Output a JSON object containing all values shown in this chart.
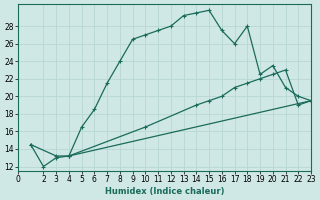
{
  "xlabel": "Humidex (Indice chaleur)",
  "background_color": "#cfe8e5",
  "grid_color": "#b8d8d4",
  "line_color": "#1a6b5a",
  "xlim": [
    0,
    23
  ],
  "ylim": [
    11.5,
    30.5
  ],
  "xticks": [
    0,
    2,
    3,
    4,
    5,
    6,
    7,
    8,
    9,
    10,
    11,
    12,
    13,
    14,
    15,
    16,
    17,
    18,
    19,
    20,
    21,
    22,
    23
  ],
  "yticks": [
    12,
    14,
    16,
    18,
    20,
    22,
    24,
    26,
    28
  ],
  "curve1_x": [
    1,
    2,
    3,
    4,
    5,
    6,
    7,
    8,
    9,
    10,
    11,
    12,
    13,
    14,
    15,
    16,
    17,
    18,
    19,
    20,
    21,
    22,
    23
  ],
  "curve1_y": [
    14.5,
    12.0,
    13.0,
    13.2,
    16.5,
    18.5,
    21.5,
    24.0,
    26.5,
    27.0,
    27.5,
    28.0,
    29.2,
    29.5,
    29.8,
    27.5,
    26.0,
    28.0,
    22.5,
    23.5,
    21.0,
    20.0,
    19.5
  ],
  "curve2_x": [
    1,
    3,
    4,
    23
  ],
  "curve2_y": [
    14.5,
    13.2,
    13.2,
    19.5
  ],
  "curve3_x": [
    4,
    10,
    14,
    15,
    16,
    17,
    18,
    19,
    20,
    21,
    22,
    23
  ],
  "curve3_y": [
    13.2,
    16.5,
    19.0,
    19.5,
    20.0,
    21.0,
    21.5,
    22.0,
    22.5,
    23.0,
    19.0,
    19.5
  ]
}
